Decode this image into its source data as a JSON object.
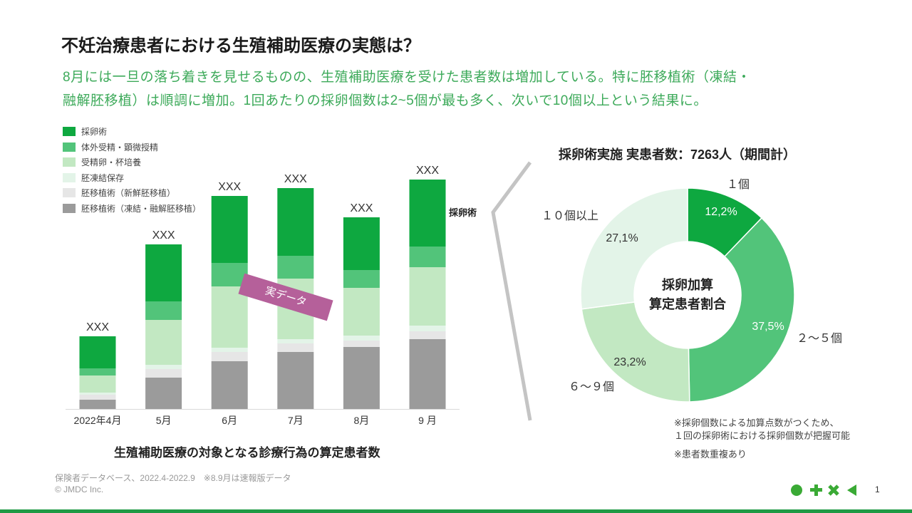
{
  "title": "不妊治療患者における生殖補助医療の実態は？",
  "subtitle": [
    "8月には一旦の落ち着きを見せるものの、生殖補助医療を受けた患者数は増加している。特に胚移植術（凍結・",
    "融解胚移植）は順調に増加。1回あたりの採卵個数は2~5個が最も多く、次いで10個以上という結果に。"
  ],
  "sticker": "実データ",
  "chart_data": [
    {
      "type": "bar",
      "stacked": true,
      "title": "生殖補助医療の対象となる診療行為の算定患者数",
      "categories": [
        "2022年4月",
        "5月",
        "6月",
        "7月",
        "8月",
        "9 月"
      ],
      "total_labels": [
        "XXX",
        "XXX",
        "XXX",
        "XXX",
        "XXX",
        "XXX"
      ],
      "y_axis_shown": false,
      "legend_placement": "top-left",
      "series_side_label": "採卵術",
      "series": [
        {
          "name": "胚移植術（凍結・融解胚移植）",
          "color": "#9b9b9b",
          "values": [
            13,
            44,
            67,
            80,
            87,
            98
          ]
        },
        {
          "name": "胚移植術（新鮮胚移植）",
          "color": "#e6e6e6",
          "values": [
            7,
            12,
            13,
            12,
            9,
            11
          ]
        },
        {
          "name": "胚凍結保存",
          "color": "#e3f4e8",
          "values": [
            3,
            6,
            6,
            6,
            7,
            8
          ]
        },
        {
          "name": "受精卵・杯培養",
          "color": "#c2e8c2",
          "values": [
            24,
            63,
            86,
            85,
            67,
            82
          ]
        },
        {
          "name": "体外受精・顕微授精",
          "color": "#52c47a",
          "values": [
            10,
            26,
            33,
            32,
            25,
            29
          ]
        },
        {
          "name": "採卵術",
          "color": "#0ea840",
          "values": [
            45,
            80,
            94,
            95,
            74,
            94
          ]
        }
      ]
    },
    {
      "type": "pie",
      "donut": true,
      "title": "採卵術実施 実患者数：7263人（期間計）",
      "center_label": [
        "採卵加算",
        "算定患者割合"
      ],
      "slices": [
        {
          "label": "１個",
          "value": 12.2,
          "value_label": "12,2%",
          "color": "#0ea840"
        },
        {
          "label": "２～５個",
          "value": 37.5,
          "value_label": "37,5%",
          "color": "#52c47a"
        },
        {
          "label": "６～９個",
          "value": 23.2,
          "value_label": "23,2%",
          "color": "#c2e8c2"
        },
        {
          "label": "１０個以上",
          "value": 27.1,
          "value_label": "27,1%",
          "color": "#e3f4e8"
        }
      ]
    }
  ],
  "notes": [
    "※採卵個数による加算点数がつくため、",
    "１回の採卵術における採卵個数が把握可能",
    "※患者数重複あり"
  ],
  "footer": {
    "source": "保険者データベース、2022.4-2022.9　※8.9月は速報版データ",
    "copyright": "© JMDC Inc.",
    "page": "1"
  },
  "brand": {
    "color": "#3aaa35",
    "icons": [
      "circle-icon",
      "plus-icon",
      "cross-icon",
      "triangle-left-icon"
    ]
  }
}
